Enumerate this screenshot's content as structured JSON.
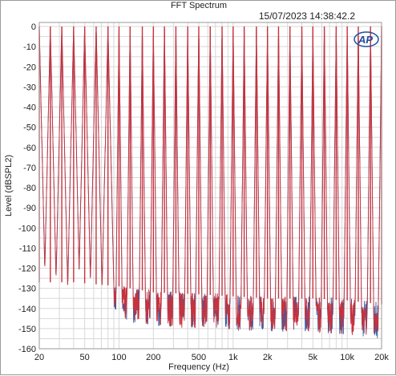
{
  "chart_data": {
    "type": "line",
    "title": "FFT Spectrum",
    "timestamp": "15/07/2023 14:38:42.2",
    "logo_text": "AP",
    "xlabel": "Frequency (Hz)",
    "ylabel": "Level (dBSPL2)",
    "x_scale": "log",
    "xlim": [
      20,
      20000
    ],
    "ylim": [
      -160,
      2
    ],
    "x_ticks": [
      {
        "v": 20,
        "label": "20"
      },
      {
        "v": 50,
        "label": "50"
      },
      {
        "v": 100,
        "label": "100"
      },
      {
        "v": 200,
        "label": "200"
      },
      {
        "v": 500,
        "label": "500"
      },
      {
        "v": 1000,
        "label": "1k"
      },
      {
        "v": 2000,
        "label": "2k"
      },
      {
        "v": 5000,
        "label": "5k"
      },
      {
        "v": 10000,
        "label": "10k"
      },
      {
        "v": 20000,
        "label": "20k"
      }
    ],
    "y_ticks": [
      0,
      -10,
      -20,
      -30,
      -40,
      -50,
      -60,
      -70,
      -80,
      -90,
      -100,
      -110,
      -120,
      -130,
      -140,
      -150,
      -160
    ],
    "grid": true,
    "colors": {
      "series_blue": "#3b5aa0",
      "series_red": "#c8323c",
      "grid": "#d8d8d8",
      "axis": "#9a9a9a",
      "logo": "#1e4fa0"
    },
    "tone_frequencies": [
      20,
      25,
      31.5,
      40,
      50,
      63,
      80,
      100,
      125,
      160,
      200,
      250,
      315,
      400,
      500,
      630,
      800,
      1000,
      1250,
      1600,
      2000,
      2500,
      3150,
      4000,
      5000,
      6300,
      8000,
      10000,
      12500,
      16000,
      20000
    ],
    "tone_level_db": 0,
    "noise_floor_envelope": [
      {
        "f": 20,
        "db": -135
      },
      {
        "f": 40,
        "db": -135
      },
      {
        "f": 100,
        "db": -137
      },
      {
        "f": 200,
        "db": -140
      },
      {
        "f": 500,
        "db": -141
      },
      {
        "f": 1000,
        "db": -142
      },
      {
        "f": 2000,
        "db": -143
      },
      {
        "f": 5000,
        "db": -143
      },
      {
        "f": 10000,
        "db": -144
      },
      {
        "f": 20000,
        "db": -146
      }
    ]
  }
}
